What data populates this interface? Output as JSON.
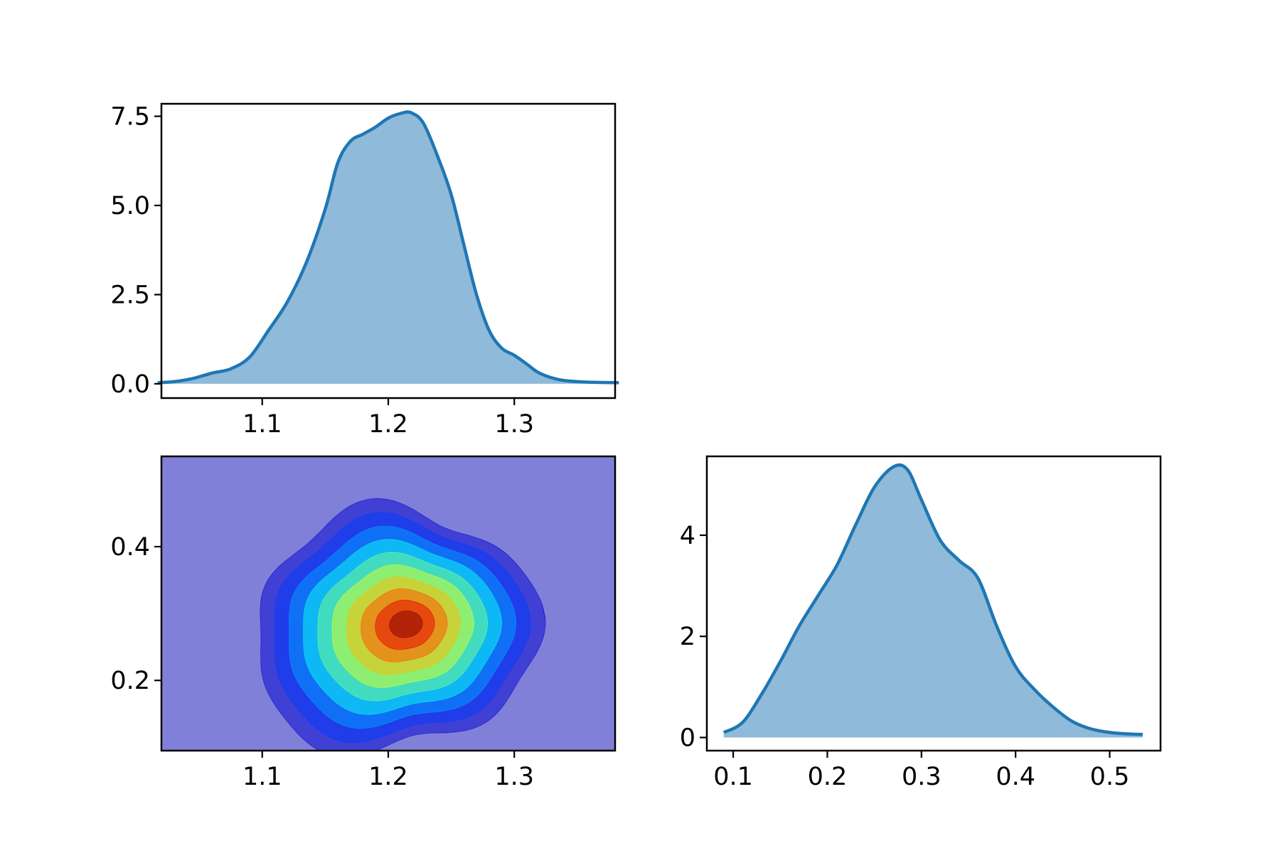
{
  "chart_data": [
    {
      "type": "area",
      "panel": "top-left",
      "title": "",
      "xlabel": "",
      "ylabel": "",
      "xlim": [
        1.02,
        1.38
      ],
      "ylim": [
        -0.4,
        7.85
      ],
      "xticks": [
        "1.1",
        "1.2",
        "1.3"
      ],
      "yticks": [
        "0.0",
        "2.5",
        "5.0",
        "7.5"
      ],
      "line_color": "#1f77b4",
      "fill_color": "#8fbad9",
      "x": [
        1.017,
        1.03,
        1.045,
        1.06,
        1.075,
        1.09,
        1.105,
        1.12,
        1.135,
        1.15,
        1.16,
        1.17,
        1.18,
        1.19,
        1.2,
        1.21,
        1.218,
        1.228,
        1.24,
        1.25,
        1.26,
        1.27,
        1.28,
        1.29,
        1.3,
        1.31,
        1.32,
        1.335,
        1.35,
        1.365,
        1.383
      ],
      "y": [
        0.03,
        0.06,
        0.15,
        0.3,
        0.42,
        0.75,
        1.5,
        2.3,
        3.4,
        4.9,
        6.2,
        6.8,
        7.0,
        7.2,
        7.45,
        7.58,
        7.6,
        7.3,
        6.3,
        5.3,
        3.9,
        2.5,
        1.5,
        1.0,
        0.8,
        0.55,
        0.3,
        0.12,
        0.06,
        0.04,
        0.03
      ]
    },
    {
      "type": "heatmap",
      "panel": "bottom-left",
      "title": "",
      "xlabel": "",
      "ylabel": "",
      "xlim": [
        1.02,
        1.38
      ],
      "ylim": [
        0.095,
        0.535
      ],
      "xticks": [
        "1.1",
        "1.2",
        "1.3"
      ],
      "yticks": [
        "0.2",
        "0.4"
      ],
      "colormap": "jet",
      "levels": 10,
      "background_color": "#8080d8",
      "peak": {
        "x": 1.215,
        "y": 0.285
      }
    },
    {
      "type": "area",
      "panel": "bottom-right",
      "title": "",
      "xlabel": "",
      "ylabel": "",
      "xlim": [
        0.072,
        0.554
      ],
      "ylim": [
        -0.26,
        5.56
      ],
      "xticks": [
        "0.1",
        "0.2",
        "0.3",
        "0.4",
        "0.5"
      ],
      "yticks": [
        "0",
        "2",
        "4"
      ],
      "line_color": "#1f77b4",
      "fill_color": "#8fbad9",
      "x": [
        0.09,
        0.11,
        0.13,
        0.15,
        0.17,
        0.19,
        0.21,
        0.23,
        0.25,
        0.27,
        0.285,
        0.3,
        0.32,
        0.34,
        0.36,
        0.38,
        0.4,
        0.42,
        0.44,
        0.46,
        0.48,
        0.5,
        0.52,
        0.535
      ],
      "y": [
        0.1,
        0.3,
        0.85,
        1.5,
        2.2,
        2.8,
        3.4,
        4.2,
        4.95,
        5.35,
        5.3,
        4.7,
        3.9,
        3.5,
        3.15,
        2.2,
        1.4,
        0.95,
        0.6,
        0.32,
        0.17,
        0.1,
        0.07,
        0.06
      ]
    }
  ]
}
